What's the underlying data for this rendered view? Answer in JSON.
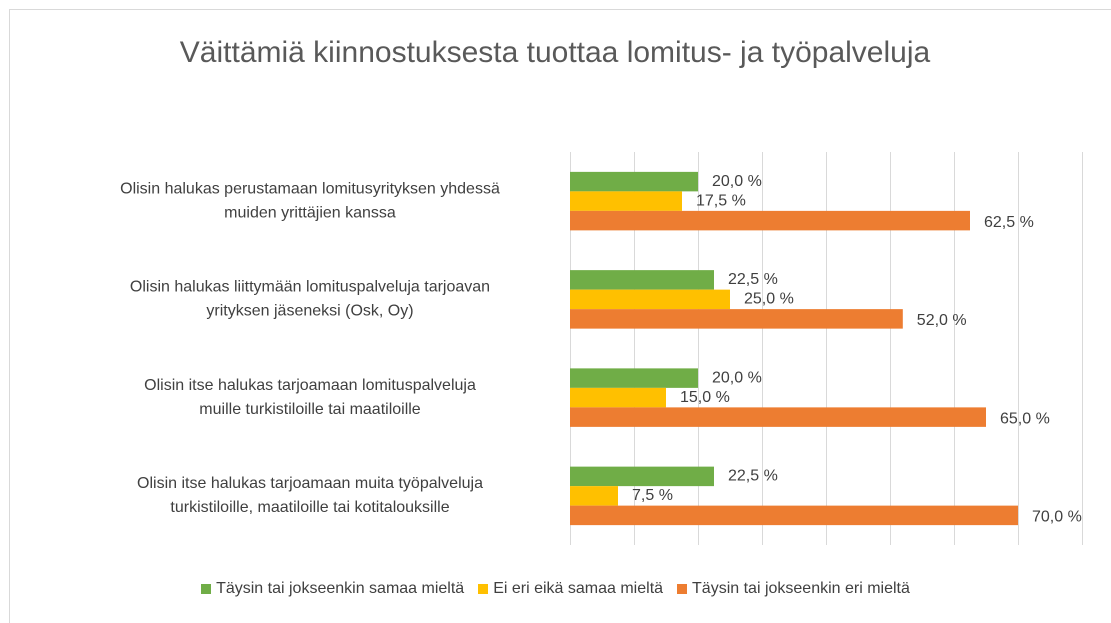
{
  "chart_data": {
    "type": "bar",
    "orientation": "horizontal",
    "title": "Väittämiä kiinnostuksesta tuottaa lomitus- ja työpalveluja",
    "categories": [
      [
        "Olisin halukas perustamaan lomitusyrityksen yhdessä",
        "muiden yrittäjien kanssa"
      ],
      [
        "Olisin halukas liittymään lomituspalveluja tarjoavan",
        "yrityksen jäseneksi (Osk, Oy)"
      ],
      [
        "Olisin itse halukas tarjoamaan lomituspalveluja",
        "muille turkistiloille tai maatiloille"
      ],
      [
        "Olisin itse halukas tarjoamaan muita työpalveluja",
        "turkistiloille, maatiloille tai kotitalouksille"
      ]
    ],
    "series": [
      {
        "name": "Täysin tai jokseenkin samaa mieltä",
        "color": "#70ad47",
        "values": [
          20.0,
          22.5,
          20.0,
          22.5
        ],
        "value_labels": [
          "20,0 %",
          "22,5 %",
          "20,0 %",
          "22,5 %"
        ]
      },
      {
        "name": "Ei eri eikä samaa mieltä",
        "color": "#ffc000",
        "values": [
          17.5,
          25.0,
          15.0,
          7.5
        ],
        "value_labels": [
          "17,5 %",
          "25,0 %",
          "15,0 %",
          "7,5 %"
        ]
      },
      {
        "name": "Täysin tai jokseenkin eri mieltä",
        "color": "#ed7d31",
        "values": [
          62.5,
          52.0,
          65.0,
          70.0
        ],
        "value_labels": [
          "62,5 %",
          "52,0 %",
          "65,0 %",
          "70,0 %"
        ]
      }
    ],
    "xlim": [
      0,
      80
    ],
    "xticks": [
      0,
      10,
      20,
      30,
      40,
      50,
      60,
      70,
      80
    ],
    "grid": true,
    "legend": "bottom"
  }
}
